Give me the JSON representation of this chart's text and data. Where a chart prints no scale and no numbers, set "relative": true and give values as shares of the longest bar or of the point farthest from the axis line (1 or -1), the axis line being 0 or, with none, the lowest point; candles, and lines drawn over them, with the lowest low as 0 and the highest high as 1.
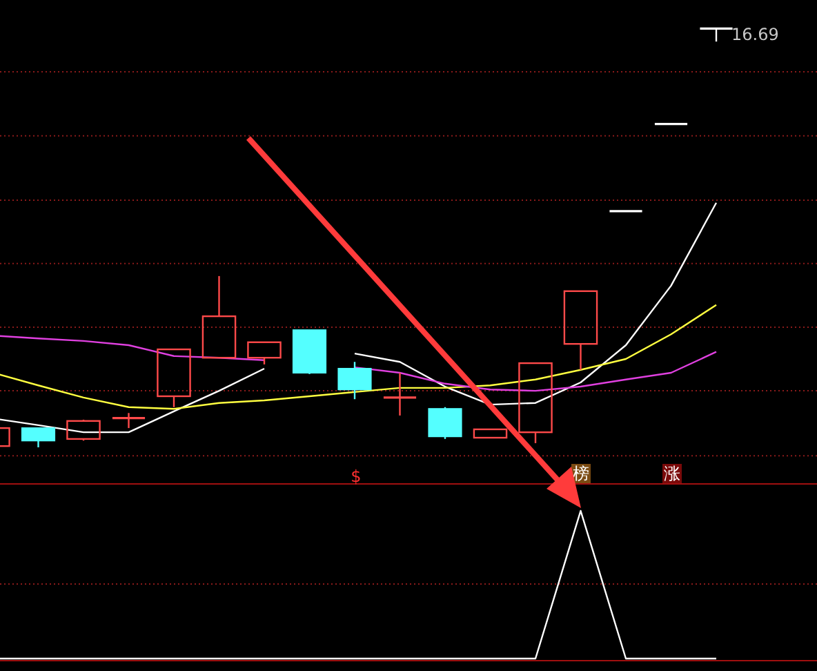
{
  "chart_data": [
    {
      "type": "candlestick",
      "relative": true,
      "categories": [
        null,
        null,
        null,
        null,
        null,
        null,
        null,
        null,
        null,
        null,
        null,
        null,
        null,
        null,
        null,
        null,
        null
      ],
      "ref_lines": [
        {
          "axis": "y",
          "value": 0.897,
          "color": "#8a1a1a",
          "line_style": "dotted"
        },
        {
          "axis": "y",
          "value": 0.744,
          "color": "#8a1a1a",
          "line_style": "dotted"
        },
        {
          "axis": "y",
          "value": 0.59,
          "color": "#8a1a1a",
          "line_style": "dotted"
        },
        {
          "axis": "y",
          "value": 0.439,
          "color": "#8a1a1a",
          "line_style": "dotted"
        },
        {
          "axis": "y",
          "value": 0.287,
          "color": "#8a1a1a",
          "line_style": "dotted"
        },
        {
          "axis": "y",
          "value": 0.135,
          "color": "#8a1a1a",
          "line_style": "dotted"
        },
        {
          "axis": "y",
          "value": -0.02,
          "color": "#8a1a1a",
          "line_style": "dotted"
        }
      ],
      "ohlc": [
        [
          0.003,
          0.046,
          0.003,
          0.046
        ],
        [
          0.046,
          0.046,
          0,
          0.016
        ],
        [
          0.02,
          0.066,
          0.016,
          0.063
        ],
        [
          0.07,
          0.082,
          0.046,
          0.07
        ],
        [
          0.122,
          0.234,
          0.096,
          0.234
        ],
        [
          0.214,
          0.409,
          0.214,
          0.313
        ],
        [
          0.214,
          0.251,
          0.198,
          0.251
        ],
        [
          0.28,
          0.28,
          0.175,
          0.178
        ],
        [
          0.188,
          0.204,
          0.115,
          0.138
        ],
        [
          0.119,
          0.178,
          0.076,
          0.119
        ],
        [
          0.092,
          0.096,
          0.02,
          0.026
        ],
        [
          0.023,
          0.043,
          0.023,
          0.043
        ],
        [
          0.036,
          0.201,
          0.01,
          0.201
        ],
        [
          0.247,
          0.373,
          0.185,
          0.373
        ],
        [
          0.564,
          0.564,
          0.564,
          0.564
        ],
        [
          0.772,
          0.772,
          0.772,
          0.772
        ],
        [
          1,
          1,
          0.969,
          1
        ]
      ],
      "colors": [
        "#ff4a4a",
        "#54ffff",
        "#ff4a4a",
        "#ff4a4a",
        "#ff4a4a",
        "#ff4a4a",
        "#ff4a4a",
        "#54ffff",
        "#54ffff",
        "#ff4a4a",
        "#54ffff",
        "#ff4a4a",
        "#ff4a4a",
        "#ff4a4a",
        "#ffffff",
        "#ffffff",
        "#ffffff"
      ],
      "series": [
        {
          "type": "line",
          "color": "#ffffff",
          "values": [
            0.069,
            0.053,
            0.036,
            0.036,
            0.086,
            0.135,
            0.188,
            null,
            0.224,
            0.204,
            0.145,
            0.102,
            0.106,
            0.155,
            0.244,
            0.386,
            0.584
          ]
        },
        {
          "type": "line",
          "color": "#ffff40",
          "values": [
            0.178,
            0.148,
            0.119,
            0.096,
            0.092,
            0.106,
            0.112,
            0.122,
            0.132,
            0.142,
            0.142,
            0.148,
            0.162,
            0.185,
            0.211,
            0.27,
            0.34
          ]
        },
        {
          "type": "line",
          "color": "#e040e0",
          "values": [
            0.267,
            0.26,
            0.254,
            0.244,
            0.218,
            0.214,
            0.208,
            null,
            0.191,
            0.178,
            0.152,
            0.138,
            0.135,
            0.145,
            0.162,
            0.178,
            0.228
          ]
        }
      ],
      "annotations": [
        "16.69",
        "$",
        "榜",
        "涨"
      ]
    },
    {
      "type": "line",
      "relative": true,
      "categories": [
        null,
        null,
        null,
        null,
        null,
        null,
        null,
        null,
        null,
        null,
        null,
        null,
        null,
        null,
        null,
        null,
        null
      ],
      "ref_lines": [
        {
          "axis": "y",
          "value": 0.505,
          "color": "#8a1a1a",
          "line_style": "dotted"
        }
      ],
      "color": "#ffffff",
      "values": [
        0,
        0,
        0,
        0,
        0,
        0,
        0,
        0,
        0,
        0,
        0,
        0,
        0,
        1,
        0,
        0,
        0
      ]
    }
  ]
}
